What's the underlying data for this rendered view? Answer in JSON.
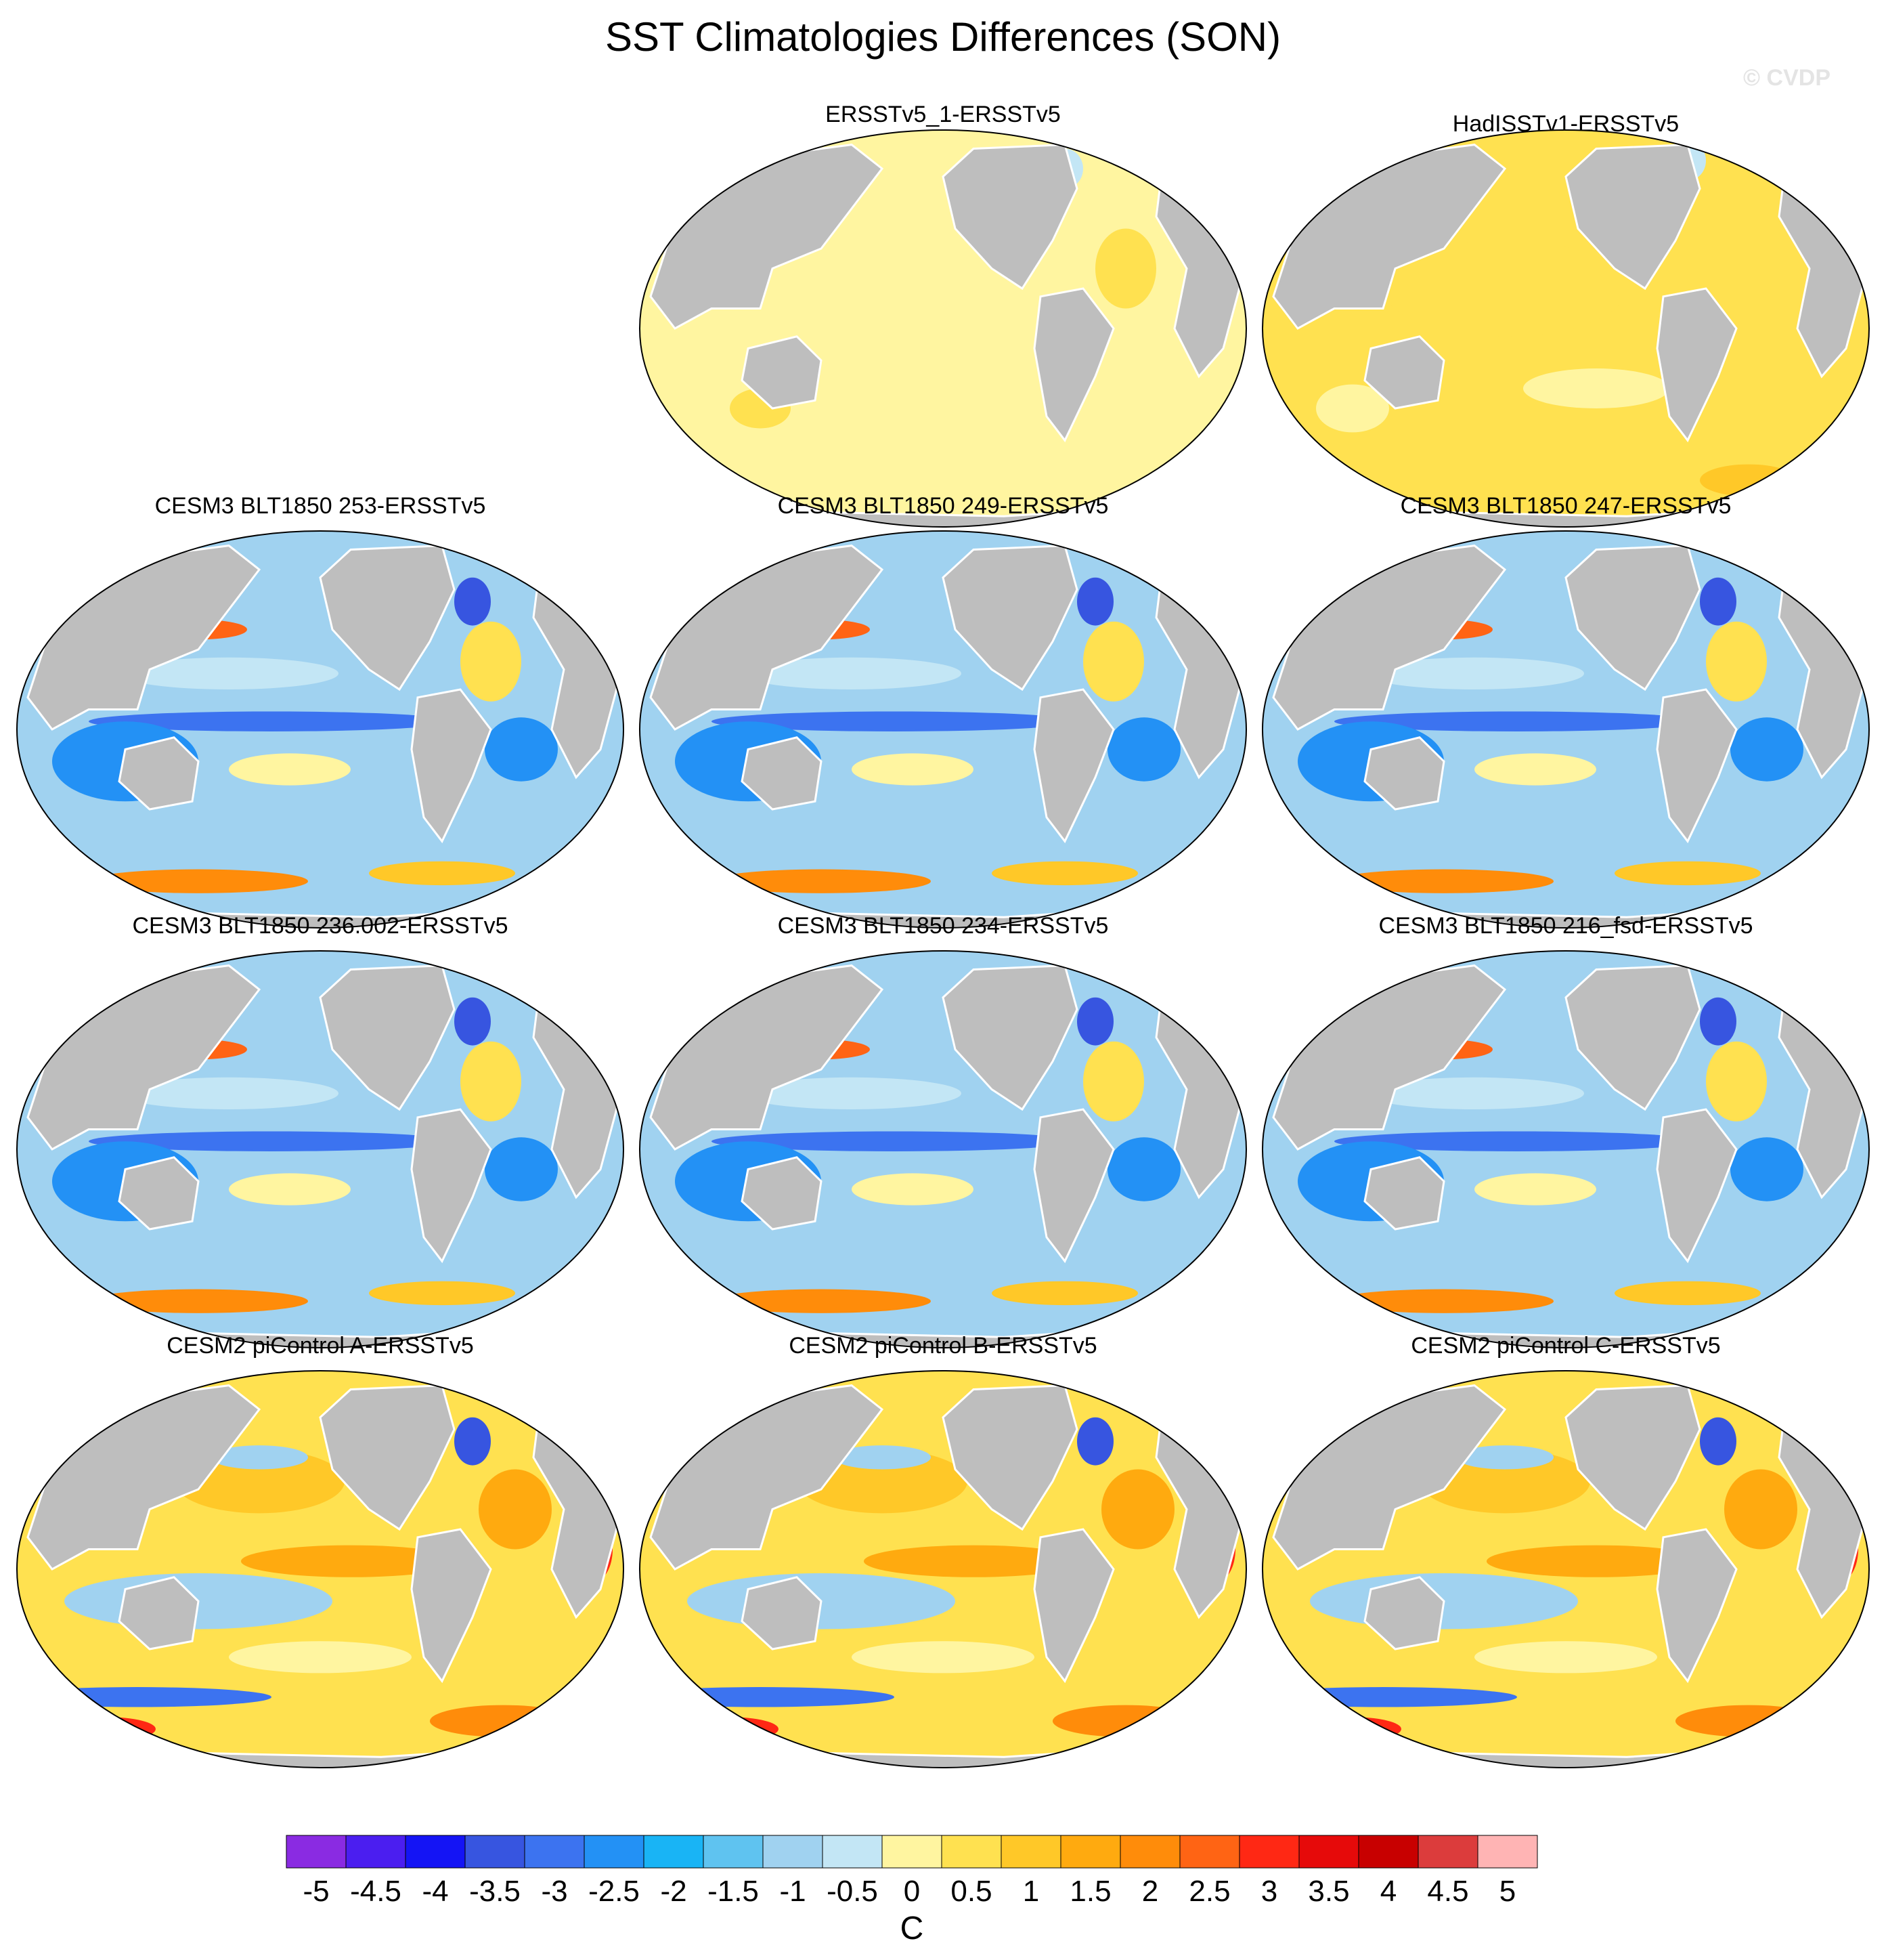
{
  "title": "SST Climatologies Differences (SON)",
  "watermark": "© CVDP",
  "panels": [
    {
      "title": "ERSSTv5_1-ERSSTv5",
      "scheme": "obs1"
    },
    {
      "title": "HadISSTv1-ERSSTv5",
      "scheme": "obs2"
    },
    {
      "title": "CESM3 BLT1850 253-ERSSTv5",
      "scheme": "blt"
    },
    {
      "title": "CESM3 BLT1850 249-ERSSTv5",
      "scheme": "blt"
    },
    {
      "title": "CESM3 BLT1850 247-ERSSTv5",
      "scheme": "blt"
    },
    {
      "title": "CESM3 BLT1850 236.002-ERSSTv5",
      "scheme": "blt"
    },
    {
      "title": "CESM3 BLT1850 234-ERSSTv5",
      "scheme": "blt"
    },
    {
      "title": "CESM3 BLT1850 216_fsd-ERSSTv5",
      "scheme": "blt"
    },
    {
      "title": "CESM2 piControl A-ERSSTv5",
      "scheme": "cesm2"
    },
    {
      "title": "CESM2 piControl B-ERSSTv5",
      "scheme": "cesm2"
    },
    {
      "title": "CESM2 piControl C-ERSSTv5",
      "scheme": "cesm2"
    }
  ],
  "colorbar": {
    "units": "C",
    "labels": [
      "-5",
      "-4.5",
      "-4",
      "-3.5",
      "-3",
      "-2.5",
      "-2",
      "-1.5",
      "-1",
      "-0.5",
      "0",
      "0.5",
      "1",
      "1.5",
      "2",
      "2.5",
      "3",
      "3.5",
      "4",
      "4.5",
      "5"
    ],
    "colors": [
      "#8a2be2",
      "#4b1ef0",
      "#1414f5",
      "#3755e0",
      "#3c73f0",
      "#2391f5",
      "#19b4f5",
      "#5fc3f0",
      "#a0d2f0",
      "#c3e6f5",
      "#fff5a0",
      "#ffe150",
      "#ffc828",
      "#ffaa0f",
      "#ff8c0a",
      "#ff6414",
      "#ff2814",
      "#e60a0a",
      "#c80000",
      "#dc3c3c",
      "#ffb4b4"
    ]
  }
}
